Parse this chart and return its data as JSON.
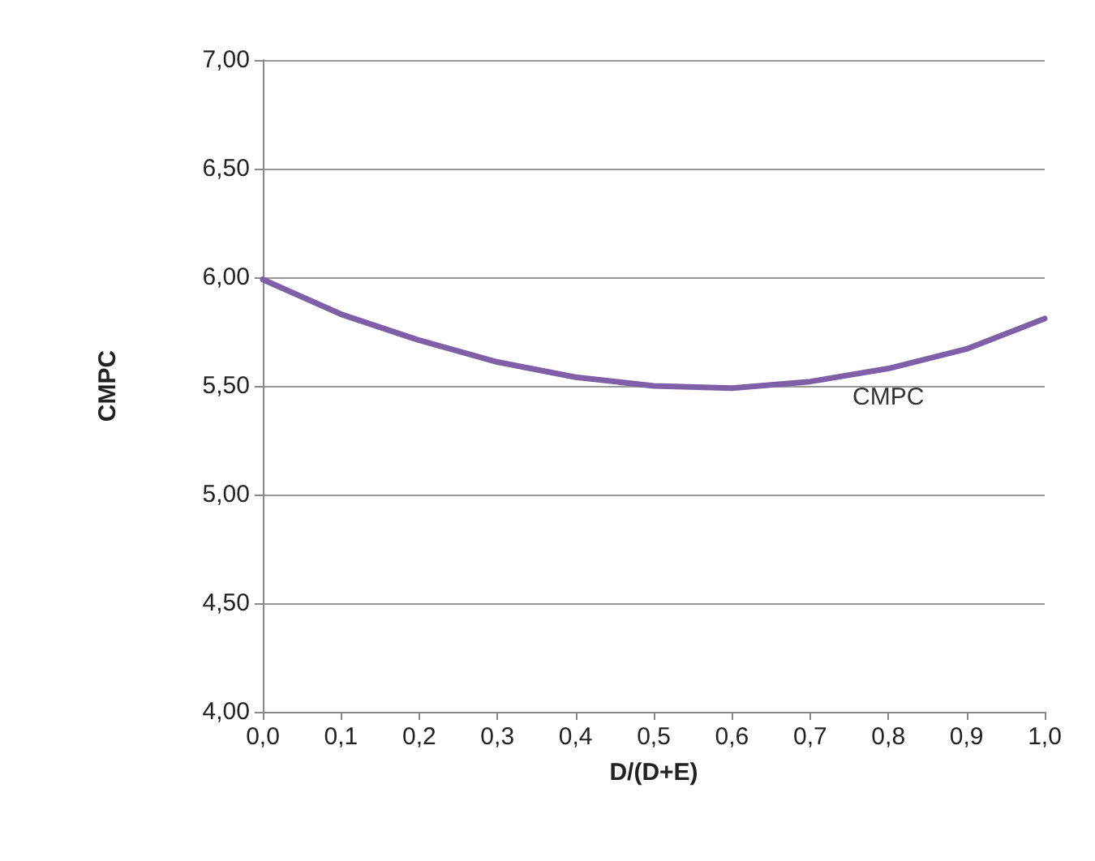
{
  "chart_data": {
    "type": "line",
    "xlabel": "D/(D+E)",
    "ylabel": "CMPC",
    "x": [
      0,
      0.1,
      0.2,
      0.3,
      0.4,
      0.5,
      0.6,
      0.7,
      0.8,
      0.9,
      1.0
    ],
    "series": [
      {
        "name": "CMPC",
        "color": "#7f5fa8",
        "values": [
          5.99,
          5.83,
          5.71,
          5.61,
          5.54,
          5.5,
          5.49,
          5.52,
          5.58,
          5.67,
          5.81
        ]
      }
    ],
    "xlim": [
      0,
      1
    ],
    "xticks": [
      {
        "value": 0,
        "label": "0,0"
      },
      {
        "value": 0.1,
        "label": "0,1"
      },
      {
        "value": 0.2,
        "label": "0,2"
      },
      {
        "value": 0.3,
        "label": "0,3"
      },
      {
        "value": 0.4,
        "label": "0,4"
      },
      {
        "value": 0.5,
        "label": "0,5"
      },
      {
        "value": 0.6,
        "label": "0,6"
      },
      {
        "value": 0.7,
        "label": "0,7"
      },
      {
        "value": 0.8,
        "label": "0,8"
      },
      {
        "value": 0.9,
        "label": "0,9"
      },
      {
        "value": 1,
        "label": "1,0"
      }
    ],
    "ylim": [
      4,
      7
    ],
    "yticks": [
      {
        "value": 4,
        "label": "4,00"
      },
      {
        "value": 4.5,
        "label": "4,50"
      },
      {
        "value": 5,
        "label": "5,00"
      },
      {
        "value": 5.5,
        "label": "5,50"
      },
      {
        "value": 6,
        "label": "6,00"
      },
      {
        "value": 6.5,
        "label": "6,50"
      },
      {
        "value": 7,
        "label": "7,00"
      }
    ],
    "grid": "y",
    "marker": "none",
    "line_style": "solid",
    "legend": false
  }
}
